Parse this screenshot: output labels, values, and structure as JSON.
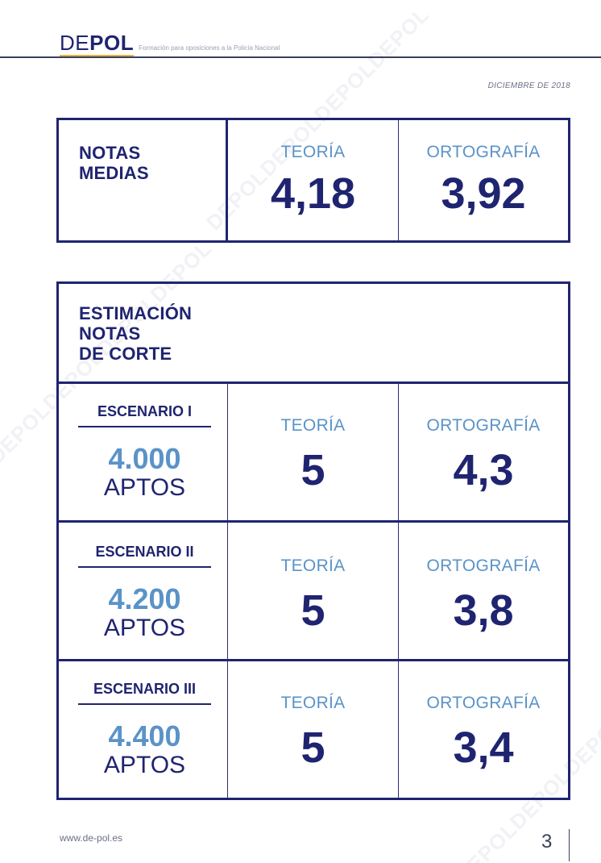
{
  "header": {
    "logo_de": "DE",
    "logo_pol": "POL",
    "tagline": "Formación para oposiciones a la Policía Nacional"
  },
  "date": "DICIEMBRE DE 2018",
  "averages": {
    "title_line1": "NOTAS",
    "title_line2": "MEDIAS",
    "theory_label": "TEORÍA",
    "theory_value": "4,18",
    "spelling_label": "ORTOGRAFÍA",
    "spelling_value": "3,92"
  },
  "estimation": {
    "title_line1": "ESTIMACIÓN",
    "title_line2": "NOTAS",
    "title_line3": "DE CORTE",
    "scenarios": [
      {
        "name": "ESCENARIO I",
        "count": "4.000",
        "count_label": "APTOS",
        "theory_label": "TEORÍA",
        "theory_value": "5",
        "spelling_label": "ORTOGRAFÍA",
        "spelling_value": "4,3"
      },
      {
        "name": "ESCENARIO II",
        "count": "4.200",
        "count_label": "APTOS",
        "theory_label": "TEORÍA",
        "theory_value": "5",
        "spelling_label": "ORTOGRAFÍA",
        "spelling_value": "3,8"
      },
      {
        "name": "ESCENARIO III",
        "count": "4.400",
        "count_label": "APTOS",
        "theory_label": "TEORÍA",
        "theory_value": "5",
        "spelling_label": "ORTOGRAFÍA",
        "spelling_value": "3,4"
      }
    ]
  },
  "watermark": "DEPOLDEPOLDEPOLDEPOL",
  "footer": {
    "url": "www.de-pol.es",
    "page_number": "3"
  },
  "colors": {
    "navy": "#1f2470",
    "light_blue": "#5a93c8",
    "accent": "#e8b23a"
  }
}
